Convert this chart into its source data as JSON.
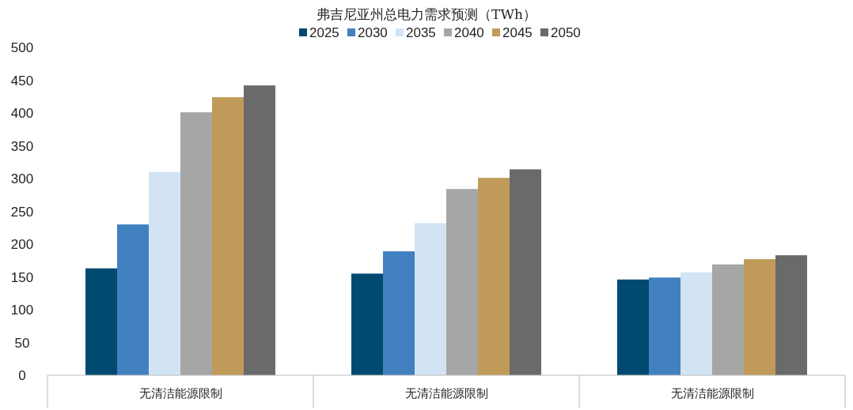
{
  "chart_data": {
    "type": "bar",
    "title": "弗吉尼亚州总电力需求预测（TWh）",
    "categories": [
      "无清洁能源限制",
      "无清洁能源限制",
      "无清洁能源限制"
    ],
    "series": [
      {
        "name": "2025",
        "color": "#004a6f",
        "values": [
          163,
          155,
          146
        ]
      },
      {
        "name": "2030",
        "color": "#4281c0",
        "values": [
          230,
          189,
          149
        ]
      },
      {
        "name": "2035",
        "color": "#d2e4f4",
        "values": [
          310,
          232,
          157
        ]
      },
      {
        "name": "2040",
        "color": "#a6a6a6",
        "values": [
          401,
          284,
          169
        ]
      },
      {
        "name": "2045",
        "color": "#c09a58",
        "values": [
          424,
          301,
          177
        ]
      },
      {
        "name": "2050",
        "color": "#6a6a6a",
        "values": [
          442,
          314,
          183
        ]
      }
    ],
    "ylim": [
      0,
      500
    ],
    "yticks": [
      0,
      50,
      100,
      150,
      200,
      250,
      300,
      350,
      400,
      450,
      500
    ],
    "grid": false,
    "legend": "top"
  }
}
